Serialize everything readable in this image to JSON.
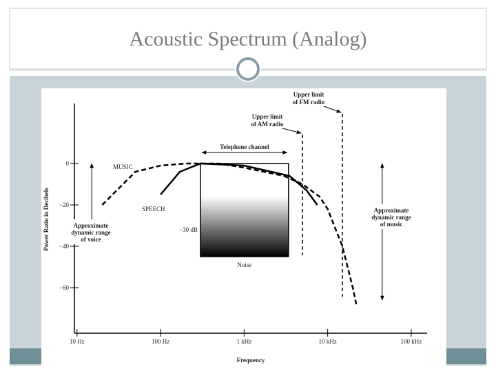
{
  "slide_title": "Acoustic Spectrum (Analog)",
  "chart_data": {
    "type": "line",
    "x_label": "Frequency",
    "y_label": "Power Ratio in Decibels",
    "x_scale": "log",
    "xlim": [
      9.3,
      155000
    ],
    "ylim": [
      -82,
      29
    ],
    "xticks": [
      {
        "value": 10,
        "label": "10 Hz"
      },
      {
        "value": 100,
        "label": "100 Hz"
      },
      {
        "value": 1000,
        "label": "1 kHz"
      },
      {
        "value": 10000,
        "label": "10 kHz"
      },
      {
        "value": 100000,
        "label": "100 kHz"
      }
    ],
    "yticks": [
      0,
      {
        "value": -20,
        "label": "−20"
      },
      {
        "value": -40,
        "label": "−40"
      },
      {
        "value": -60,
        "label": "−60"
      }
    ],
    "series": [
      {
        "name": "MUSIC",
        "color": "#000000",
        "dash": true,
        "x": [
          20,
          50,
          100,
          200,
          500,
          1000,
          3000,
          5000,
          8000,
          10000,
          15000,
          20000,
          22000
        ],
        "values": [
          -20,
          -4,
          -1,
          0,
          0,
          -2,
          -6,
          -10,
          -16,
          -22,
          -40,
          -60,
          -68
        ]
      },
      {
        "name": "SPEECH",
        "color": "#000000",
        "dash": false,
        "x": [
          100,
          170,
          300,
          1000,
          3500,
          5600,
          7500
        ],
        "values": [
          -15,
          -4,
          0,
          -1,
          -6,
          -13,
          -20
        ]
      }
    ],
    "band": {
      "label": "Telephone channel",
      "x": [
        300,
        3400
      ],
      "y": [
        0,
        -45
      ],
      "level_label": "−30 dB",
      "floor_label": "Noise"
    },
    "reference_lines": [
      {
        "label": [
          "Upper limit",
          "of AM radio"
        ],
        "x": 5000
      },
      {
        "label": [
          "Upper limit",
          "of FM radio"
        ],
        "x": 15000
      }
    ],
    "ranges": [
      {
        "label": [
          "Approximate",
          "dynamic range",
          "of voice"
        ],
        "x": 15,
        "y": [
          0,
          -30
        ]
      },
      {
        "label": [
          "Approximate",
          "dynamic range",
          "of music"
        ],
        "x": 45000,
        "y": [
          0,
          -66
        ]
      }
    ]
  }
}
